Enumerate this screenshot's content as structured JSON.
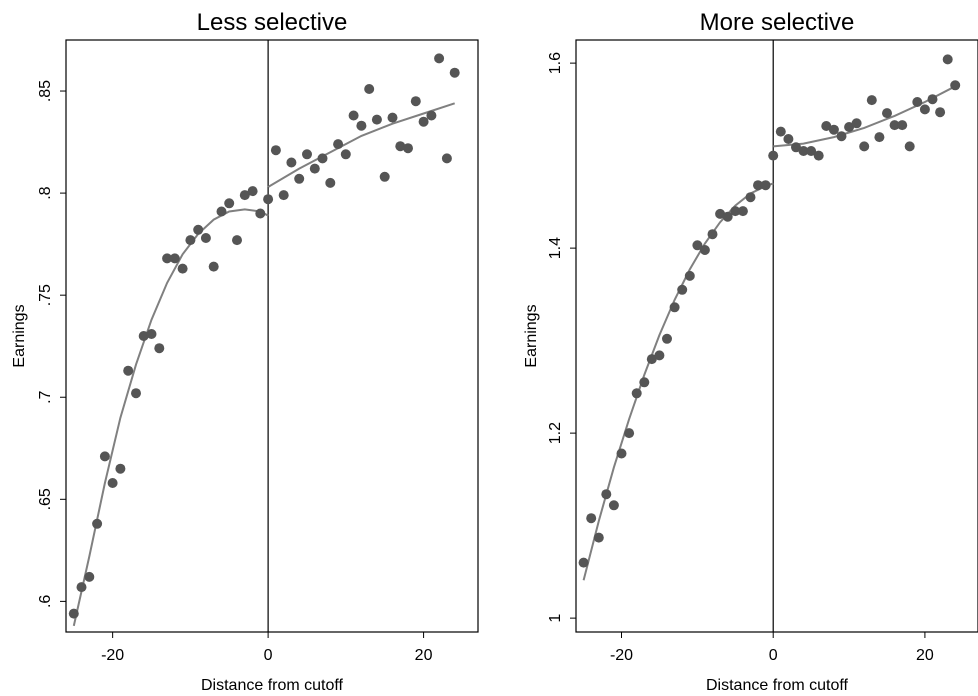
{
  "chart_data": [
    {
      "type": "scatter",
      "title": "Less selective",
      "xlabel": "Distance from cutoff",
      "ylabel": "Earnings",
      "xlim": [
        -26,
        27
      ],
      "ylim": [
        0.585,
        0.875
      ],
      "xticks": [
        -20,
        0,
        20
      ],
      "xtick_labels": [
        "-20",
        "0",
        "20"
      ],
      "yticks": [
        0.6,
        0.65,
        0.7,
        0.75,
        0.8,
        0.85
      ],
      "ytick_labels": [
        ".6",
        ".65",
        ".7",
        ".75",
        ".8",
        ".85"
      ],
      "cutoff": 0,
      "grid": false,
      "legend": "none",
      "colors": {
        "points": "#555555",
        "fit": "#808080",
        "axes": "#000000"
      },
      "points": [
        [
          -25,
          0.594
        ],
        [
          -24,
          0.607
        ],
        [
          -23,
          0.612
        ],
        [
          -22,
          0.638
        ],
        [
          -21,
          0.671
        ],
        [
          -20,
          0.658
        ],
        [
          -19,
          0.665
        ],
        [
          -18,
          0.713
        ],
        [
          -17,
          0.702
        ],
        [
          -16,
          0.73
        ],
        [
          -15,
          0.731
        ],
        [
          -14,
          0.724
        ],
        [
          -13,
          0.768
        ],
        [
          -12,
          0.768
        ],
        [
          -11,
          0.763
        ],
        [
          -10,
          0.777
        ],
        [
          -9,
          0.782
        ],
        [
          -8,
          0.778
        ],
        [
          -7,
          0.764
        ],
        [
          -6,
          0.791
        ],
        [
          -5,
          0.795
        ],
        [
          -4,
          0.777
        ],
        [
          -3,
          0.799
        ],
        [
          -2,
          0.801
        ],
        [
          -1,
          0.79
        ],
        [
          0,
          0.797
        ],
        [
          1,
          0.821
        ],
        [
          2,
          0.799
        ],
        [
          3,
          0.815
        ],
        [
          4,
          0.807
        ],
        [
          5,
          0.819
        ],
        [
          6,
          0.812
        ],
        [
          7,
          0.817
        ],
        [
          8,
          0.805
        ],
        [
          9,
          0.824
        ],
        [
          10,
          0.819
        ],
        [
          11,
          0.838
        ],
        [
          12,
          0.833
        ],
        [
          13,
          0.851
        ],
        [
          14,
          0.836
        ],
        [
          15,
          0.808
        ],
        [
          16,
          0.837
        ],
        [
          17,
          0.823
        ],
        [
          18,
          0.822
        ],
        [
          19,
          0.845
        ],
        [
          20,
          0.835
        ],
        [
          21,
          0.838
        ],
        [
          22,
          0.866
        ],
        [
          23,
          0.817
        ],
        [
          24,
          0.859
        ]
      ],
      "fit_left": [
        [
          -25,
          0.588
        ],
        [
          -23,
          0.622
        ],
        [
          -21,
          0.658
        ],
        [
          -19,
          0.69
        ],
        [
          -17,
          0.716
        ],
        [
          -15,
          0.738
        ],
        [
          -13,
          0.756
        ],
        [
          -11,
          0.77
        ],
        [
          -9,
          0.78
        ],
        [
          -7,
          0.787
        ],
        [
          -5,
          0.791
        ],
        [
          -3,
          0.792
        ],
        [
          -1,
          0.791
        ],
        [
          0,
          0.789
        ]
      ],
      "fit_right": [
        [
          0,
          0.803
        ],
        [
          4,
          0.812
        ],
        [
          8,
          0.82
        ],
        [
          12,
          0.828
        ],
        [
          16,
          0.834
        ],
        [
          20,
          0.839
        ],
        [
          24,
          0.844
        ]
      ]
    },
    {
      "type": "scatter",
      "title": "More selective",
      "xlabel": "Distance from cutoff",
      "ylabel": "Earnings",
      "xlim": [
        -26,
        27
      ],
      "ylim": [
        0.985,
        1.625
      ],
      "xticks": [
        -20,
        0,
        20
      ],
      "xtick_labels": [
        "-20",
        "0",
        "20"
      ],
      "yticks": [
        1.0,
        1.2,
        1.4,
        1.6
      ],
      "ytick_labels": [
        "1",
        "1.2",
        "1.4",
        "1.6"
      ],
      "cutoff": 0,
      "grid": false,
      "legend": "none",
      "colors": {
        "points": "#555555",
        "fit": "#808080",
        "axes": "#000000"
      },
      "points": [
        [
          -25,
          1.06
        ],
        [
          -24,
          1.108
        ],
        [
          -23,
          1.087
        ],
        [
          -22,
          1.134
        ],
        [
          -21,
          1.122
        ],
        [
          -20,
          1.178
        ],
        [
          -19,
          1.2
        ],
        [
          -18,
          1.243
        ],
        [
          -17,
          1.255
        ],
        [
          -16,
          1.28
        ],
        [
          -15,
          1.284
        ],
        [
          -14,
          1.302
        ],
        [
          -13,
          1.336
        ],
        [
          -12,
          1.355
        ],
        [
          -11,
          1.37
        ],
        [
          -10,
          1.403
        ],
        [
          -9,
          1.398
        ],
        [
          -8,
          1.415
        ],
        [
          -7,
          1.437
        ],
        [
          -6,
          1.434
        ],
        [
          -5,
          1.44
        ],
        [
          -4,
          1.44
        ],
        [
          -3,
          1.455
        ],
        [
          -2,
          1.468
        ],
        [
          -1,
          1.468
        ],
        [
          0,
          1.5
        ],
        [
          1,
          1.526
        ],
        [
          2,
          1.518
        ],
        [
          3,
          1.509
        ],
        [
          4,
          1.505
        ],
        [
          5,
          1.505
        ],
        [
          6,
          1.5
        ],
        [
          7,
          1.532
        ],
        [
          8,
          1.528
        ],
        [
          9,
          1.521
        ],
        [
          10,
          1.531
        ],
        [
          11,
          1.535
        ],
        [
          12,
          1.51
        ],
        [
          13,
          1.56
        ],
        [
          14,
          1.52
        ],
        [
          15,
          1.546
        ],
        [
          16,
          1.533
        ],
        [
          17,
          1.533
        ],
        [
          18,
          1.51
        ],
        [
          19,
          1.558
        ],
        [
          20,
          1.55
        ],
        [
          21,
          1.561
        ],
        [
          22,
          1.547
        ],
        [
          23,
          1.604
        ],
        [
          24,
          1.576
        ]
      ],
      "fit_left": [
        [
          -25,
          1.041
        ],
        [
          -23,
          1.105
        ],
        [
          -21,
          1.163
        ],
        [
          -19,
          1.215
        ],
        [
          -17,
          1.263
        ],
        [
          -15,
          1.306
        ],
        [
          -13,
          1.344
        ],
        [
          -11,
          1.377
        ],
        [
          -9,
          1.405
        ],
        [
          -7,
          1.428
        ],
        [
          -5,
          1.446
        ],
        [
          -3,
          1.459
        ],
        [
          -1,
          1.467
        ],
        [
          0,
          1.47
        ]
      ],
      "fit_right": [
        [
          0,
          1.51
        ],
        [
          4,
          1.513
        ],
        [
          8,
          1.52
        ],
        [
          12,
          1.53
        ],
        [
          16,
          1.543
        ],
        [
          20,
          1.558
        ],
        [
          24,
          1.575
        ]
      ]
    }
  ]
}
